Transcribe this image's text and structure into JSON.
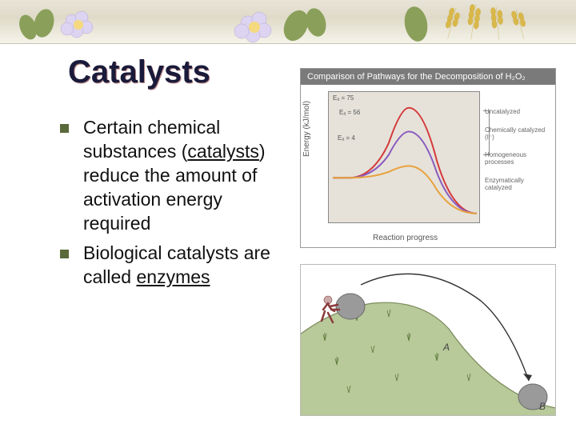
{
  "title": "Catalysts",
  "bullets": [
    {
      "pre": "Certain chemical substances (",
      "underlined": "catalysts",
      "post": ") reduce the amount of activation energy required"
    },
    {
      "pre": "Biological catalysts are called ",
      "underlined": "enzymes",
      "post": ""
    }
  ],
  "chart": {
    "header": "Comparison of Pathways for the Decomposition of H₂O₂",
    "y_axis": "Energy (kJ/mol)",
    "x_axis": "Reaction progress",
    "curves": [
      {
        "label": "Uncatalyzed",
        "ea": "Eₐ = 75",
        "color": "#d43b3b",
        "peak": 0.88
      },
      {
        "label": "Chemically catalyzed (I⁻)",
        "ea": "Eₐ = 56",
        "color": "#8a5bbf",
        "peak": 0.7
      },
      {
        "label": "Enzymatically catalyzed",
        "ea": "Eₐ = 4",
        "color": "#e8a23c",
        "peak": 0.44
      }
    ],
    "bracket_label": "Homogeneous processes",
    "start_y": 0.35,
    "end_y": 0.08,
    "plot_bg": "#e6e2da"
  },
  "hill": {
    "hill_color": "#b8c99a",
    "hill_edge": "#7a8a5a",
    "grass_color": "#5a7a3a",
    "arrow_color": "#333",
    "boulder_color": "#9a9a9a",
    "person_color": "#8a3a3a",
    "labels": {
      "A": "A",
      "B": "B"
    }
  },
  "decor": {
    "flower_fill": "#dcd4f0",
    "flower_center": "#f5d980",
    "leaf_fill": "#8aa05a",
    "wheat_fill": "#d9b84a"
  }
}
